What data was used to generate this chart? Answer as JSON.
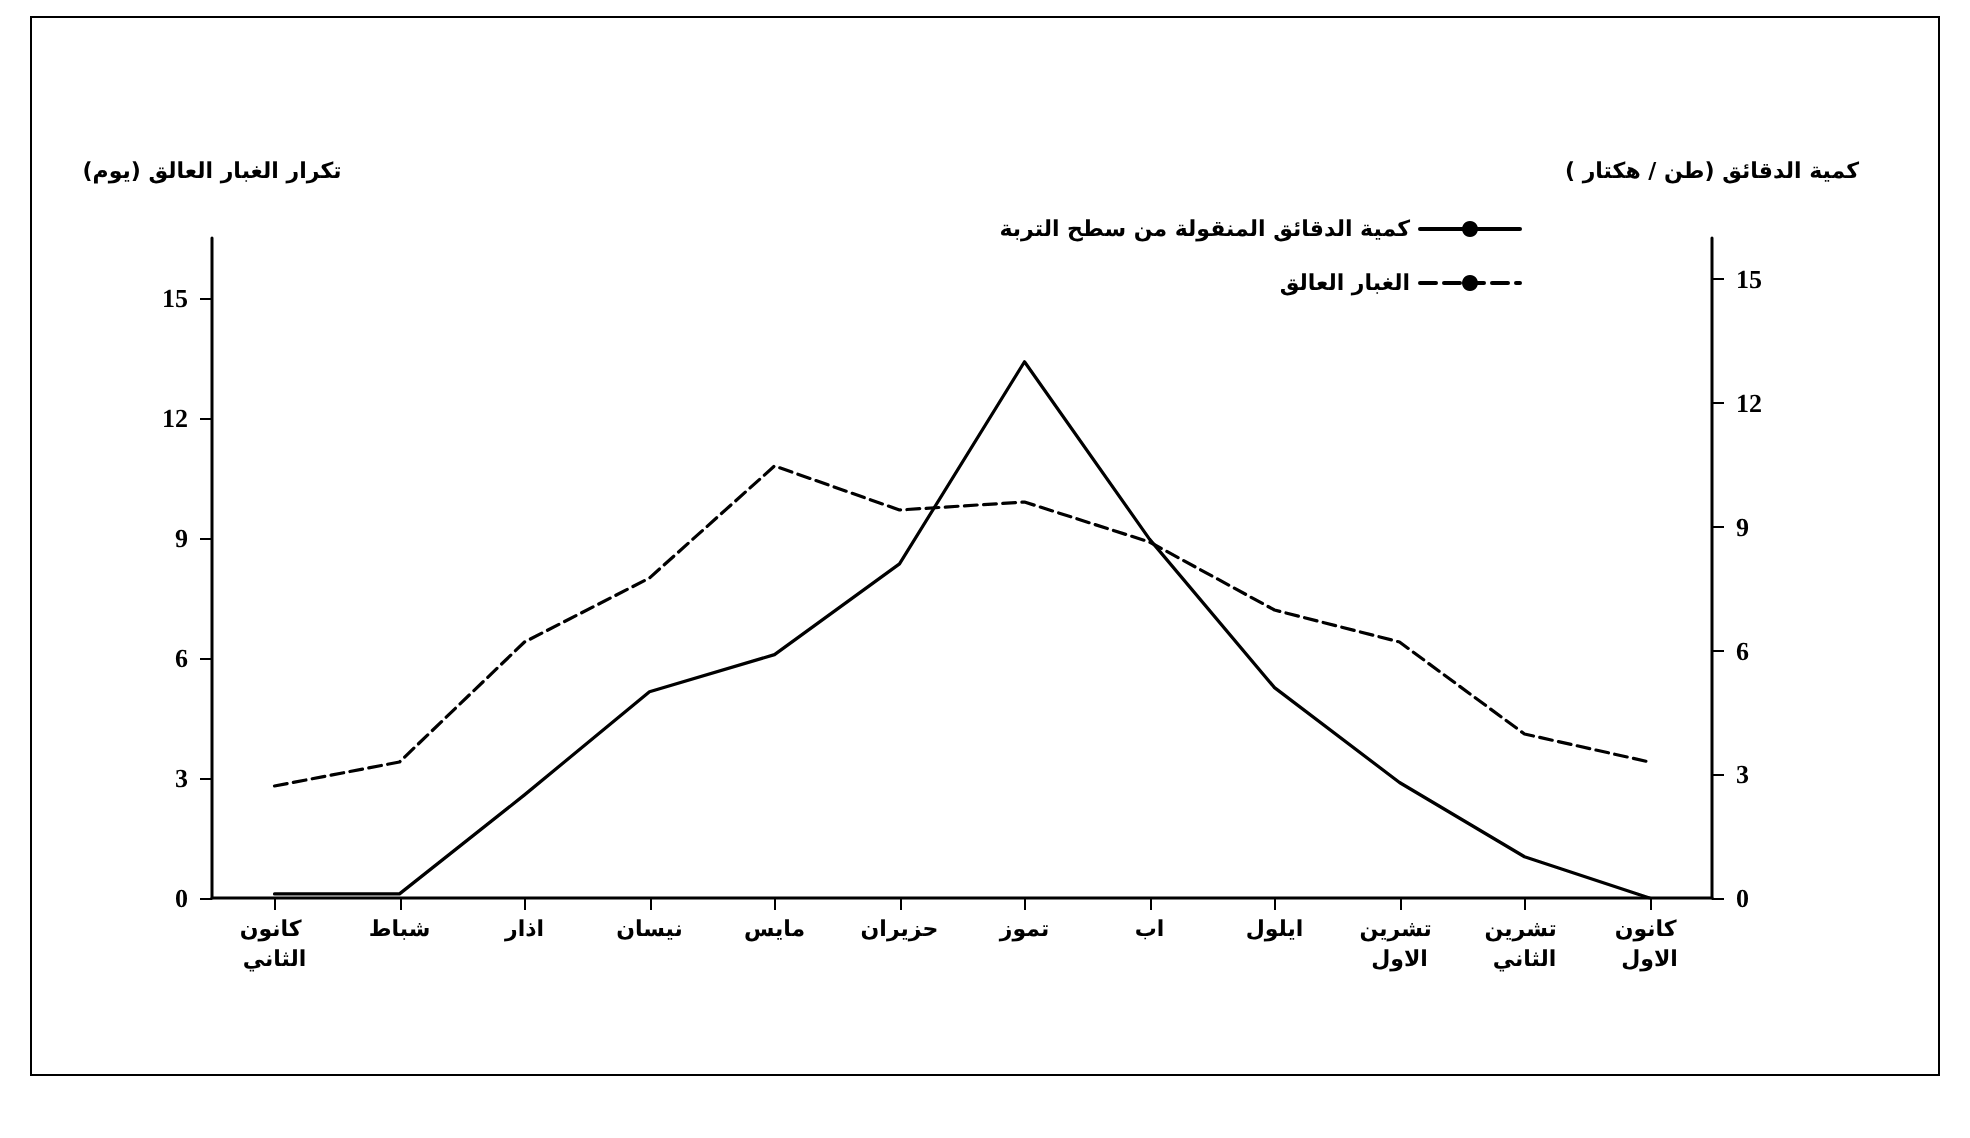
{
  "chart_data": {
    "type": "line",
    "ylabel": "تكرار الغبار العالق (يوم)",
    "y2label": "كمية الدقائق (طن / هكتار )",
    "categories": [
      "كانون الثاني",
      "شباط",
      "اذار",
      "نيسان",
      "مايس",
      "حزيران",
      "تموز",
      "اب",
      "ايلول",
      "تشرين الاول",
      "تشرين الثاني",
      "كانون الاول"
    ],
    "series": [
      {
        "name": "كمية الدقائق المنقولة من سطح التربة",
        "color": "#000000",
        "axis": "y2",
        "line_style": "solid",
        "values": [
          0.1,
          0.1,
          2.5,
          5.0,
          5.9,
          8.1,
          13.0,
          8.7,
          5.1,
          2.8,
          1.0,
          0
        ]
      },
      {
        "name": "الغبار العالق",
        "color": "#000000",
        "line_style": "dashed",
        "values": [
          2.8,
          3.4,
          6.4,
          8.0,
          10.8,
          9.7,
          9.9,
          8.9,
          7.2,
          6.4,
          4.1,
          3.4
        ]
      }
    ],
    "ylim": [
      0,
      16.5
    ],
    "yticks": [
      0,
      3,
      6,
      9,
      12,
      15
    ],
    "y2lim": [
      0,
      16
    ],
    "y2ticks": [
      0,
      3,
      6,
      9,
      12,
      15
    ],
    "grid": false,
    "legend": "top right",
    "marker": "none"
  }
}
